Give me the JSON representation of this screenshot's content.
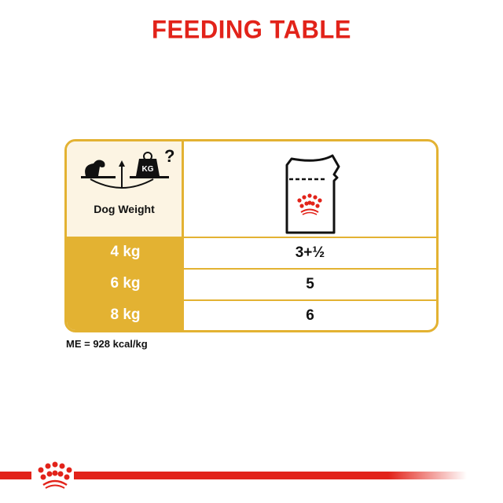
{
  "title": "FEEDING TABLE",
  "table": {
    "header": {
      "weight_label": "Dog Weight",
      "kg_badge": "KG",
      "question_mark": "?",
      "weight_icon": "dog-on-scale-icon",
      "product_icon": "pouch-icon"
    },
    "rows": [
      {
        "weight": "4 kg",
        "pouches": "3+½"
      },
      {
        "weight": "6 kg",
        "pouches": "5"
      },
      {
        "weight": "8 kg",
        "pouches": "6"
      }
    ]
  },
  "footnote": "ME = 928 kcal/kg",
  "colors": {
    "brand_red": "#e2231a",
    "gold": "#e3b232",
    "cream": "#fcf4e3"
  }
}
